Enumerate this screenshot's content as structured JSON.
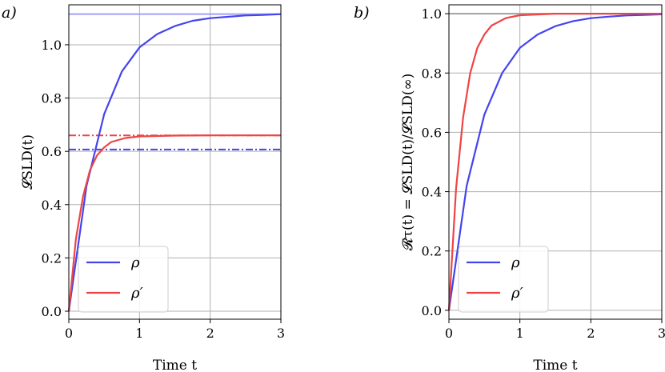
{
  "colors": {
    "rho": "#4444ee",
    "rho_prime": "#ee4444",
    "asymptote_rho": "#a0a0f4"
  },
  "chart_data": [
    {
      "type": "line",
      "panel_label": "a)",
      "xlabel": "Time t",
      "ylabel": "𝓛SLD(t)",
      "xlim": [
        0,
        3
      ],
      "ylim": [
        -0.03,
        1.15
      ],
      "xticks": [
        "0",
        "1",
        "2",
        "3"
      ],
      "yticks": [
        "0.0",
        "0.2",
        "0.4",
        "0.6",
        "0.8",
        "1.0"
      ],
      "grid": true,
      "legend": {
        "placement": "lower-left",
        "entries": [
          "ρ",
          "ρ′"
        ]
      },
      "series": [
        {
          "name": "ρ",
          "color": "#4444ee",
          "style": "solid",
          "x": [
            0,
            0.25,
            0.5,
            0.75,
            1.0,
            1.25,
            1.5,
            1.75,
            2.0,
            2.25,
            2.5,
            2.75,
            3.0
          ],
          "y": [
            0.0,
            0.47,
            0.74,
            0.9,
            0.99,
            1.04,
            1.07,
            1.09,
            1.1,
            1.105,
            1.11,
            1.112,
            1.115
          ]
        },
        {
          "name": "ρ′",
          "color": "#ee4444",
          "style": "solid",
          "x": [
            0,
            0.1,
            0.2,
            0.3,
            0.4,
            0.5,
            0.6,
            0.8,
            1.0,
            1.5,
            2.0,
            2.5,
            3.0
          ],
          "y": [
            0.0,
            0.27,
            0.43,
            0.53,
            0.585,
            0.615,
            0.635,
            0.65,
            0.656,
            0.659,
            0.66,
            0.66,
            0.66
          ]
        }
      ],
      "reference_lines": [
        {
          "y": 1.115,
          "color": "#a0a0f4",
          "style": "solid"
        },
        {
          "y": 0.66,
          "color": "#ee4444",
          "style": "dashdot"
        },
        {
          "y": 0.607,
          "color": "#4444ee",
          "style": "dashdot"
        }
      ]
    },
    {
      "type": "line",
      "panel_label": "b)",
      "xlabel": "Time t",
      "ylabel": "𝓡τ(t) = 𝓛SLD(t)/𝓛SLD(∞)",
      "xlim": [
        0,
        3
      ],
      "ylim": [
        -0.03,
        1.03
      ],
      "xticks": [
        "0",
        "1",
        "2",
        "3"
      ],
      "yticks": [
        "0.0",
        "0.2",
        "0.4",
        "0.6",
        "0.8",
        "1.0"
      ],
      "grid": true,
      "legend": {
        "placement": "lower-left",
        "entries": [
          "ρ",
          "ρ′"
        ]
      },
      "series": [
        {
          "name": "ρ",
          "color": "#4444ee",
          "style": "solid",
          "x": [
            0,
            0.25,
            0.5,
            0.75,
            1.0,
            1.25,
            1.5,
            1.75,
            2.0,
            2.25,
            2.5,
            2.75,
            3.0
          ],
          "y": [
            0.0,
            0.42,
            0.66,
            0.8,
            0.885,
            0.93,
            0.958,
            0.975,
            0.985,
            0.99,
            0.994,
            0.996,
            0.998
          ]
        },
        {
          "name": "ρ′",
          "color": "#ee4444",
          "style": "solid",
          "x": [
            0,
            0.1,
            0.2,
            0.3,
            0.4,
            0.5,
            0.6,
            0.8,
            1.0,
            1.5,
            2.0,
            2.5,
            3.0
          ],
          "y": [
            0.0,
            0.41,
            0.65,
            0.8,
            0.885,
            0.93,
            0.96,
            0.985,
            0.995,
            1.0,
            1.0,
            1.0,
            1.0
          ]
        }
      ],
      "reference_lines": [
        {
          "y": 1.0,
          "color": "#a0a0a0",
          "style": "solid"
        }
      ]
    }
  ]
}
